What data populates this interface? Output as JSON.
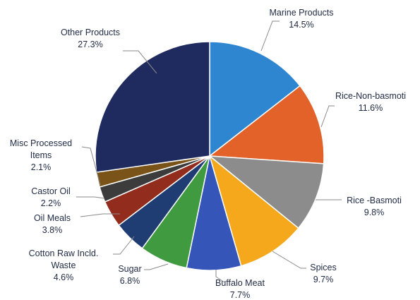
{
  "chart_data": {
    "type": "pie",
    "title": "",
    "start_angle_deg": 0,
    "direction": "clockwise",
    "slices": [
      {
        "label": "Marine Products",
        "value": 14.5,
        "value_label": "14.5%",
        "color": "#2e86d1"
      },
      {
        "label": "Rice-Non-basmoti",
        "value": 11.6,
        "value_label": "11.6%",
        "color": "#e2622a"
      },
      {
        "label": "Rice -Basmoti",
        "value": 9.8,
        "value_label": "9.8%",
        "color": "#8c8c8c"
      },
      {
        "label": "Spices",
        "value": 9.7,
        "value_label": "9.7%",
        "color": "#f5a81c"
      },
      {
        "label": "Buffalo Meat",
        "value": 7.7,
        "value_label": "7.7%",
        "color": "#3556b8"
      },
      {
        "label": "Sugar",
        "value": 6.8,
        "value_label": "6.8%",
        "color": "#3f9a40"
      },
      {
        "label": "Cotton Raw Incld. Waste",
        "value": 4.6,
        "value_label": "4.6%",
        "color": "#1f3d72"
      },
      {
        "label": "Oil Meals",
        "value": 3.8,
        "value_label": "3.8%",
        "color": "#922c1c"
      },
      {
        "label": "Castor Oil",
        "value": 2.2,
        "value_label": "2.2%",
        "color": "#3c3c3c"
      },
      {
        "label": "Misc Processed Items",
        "value": 2.1,
        "value_label": "2.1%",
        "color": "#7a5318"
      },
      {
        "label": "Other Products",
        "value": 27.3,
        "value_label": "27.3%",
        "color": "#1f2a5e"
      }
    ]
  }
}
